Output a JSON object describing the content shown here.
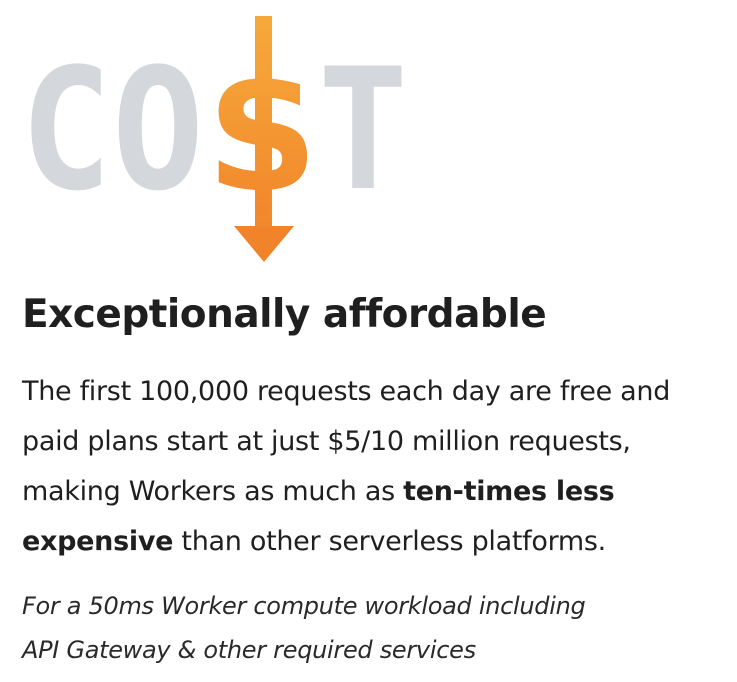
{
  "hero": {
    "letters": [
      "C",
      "O",
      "$",
      "T"
    ],
    "colors": {
      "letters": "#d4d7dc",
      "dollar_top": "#f6a93a",
      "dollar_bottom": "#f1842a"
    },
    "icon": "dollar-down-arrow-icon"
  },
  "heading": "Exceptionally affordable",
  "body": {
    "before": "The first 100,000 requests each day are free and paid plans start at just $5/10 million requests, making Workers as much as ",
    "bold": "ten-times less expensive",
    "after": " than other serverless platforms."
  },
  "footnote": {
    "line1": "For a 50ms Worker compute workload including",
    "line2": "API Gateway & other required services"
  }
}
